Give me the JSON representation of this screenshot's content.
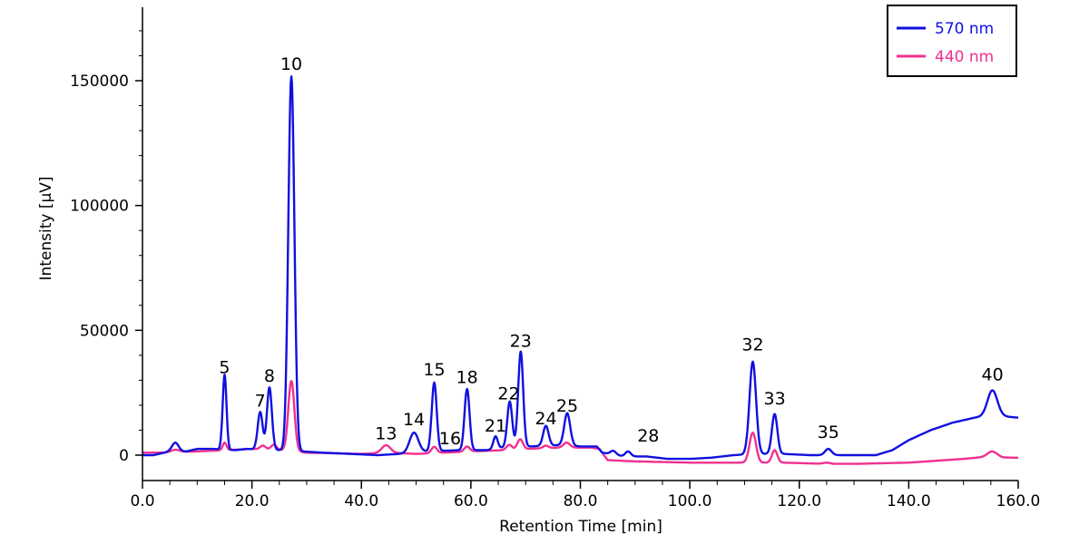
{
  "chart_data": {
    "type": "line",
    "title": "",
    "xlabel": "Retention Time [min]",
    "ylabel": "Intensity [µV]",
    "xlim": [
      0,
      160
    ],
    "ylim": [
      -10000,
      180000
    ],
    "x_ticks": [
      0,
      20,
      40,
      60,
      80,
      100,
      120,
      140,
      160
    ],
    "x_tick_labels": [
      "0.0",
      "20.0",
      "40.0",
      "60.0",
      "80.0",
      "100.0",
      "120.0",
      "140.0",
      "160.0"
    ],
    "y_ticks": [
      0,
      50000,
      100000,
      150000
    ],
    "y_tick_labels": [
      "0",
      "50000",
      "100000",
      "150000"
    ],
    "legend_position": "top-right",
    "series": [
      {
        "name": "570 nm",
        "color": "#1010e0",
        "baseline": [
          [
            0,
            0
          ],
          [
            2,
            0
          ],
          [
            5,
            1500
          ],
          [
            8,
            1500
          ],
          [
            10,
            2500
          ],
          [
            13,
            2500
          ],
          [
            17,
            2000
          ],
          [
            19,
            2500
          ],
          [
            25,
            2000
          ],
          [
            29,
            1500
          ],
          [
            33,
            1000
          ],
          [
            38,
            500
          ],
          [
            43,
            0
          ],
          [
            47,
            500
          ],
          [
            52,
            1500
          ],
          [
            58,
            2000
          ],
          [
            63,
            2000
          ],
          [
            67,
            3500
          ],
          [
            71,
            3500
          ],
          [
            76,
            4000
          ],
          [
            80,
            3500
          ],
          [
            83,
            3500
          ],
          [
            84,
            1000
          ],
          [
            88,
            -500
          ],
          [
            92,
            -500
          ],
          [
            96,
            -1500
          ],
          [
            100,
            -1500
          ],
          [
            104,
            -1000
          ],
          [
            108,
            0
          ],
          [
            112,
            500
          ],
          [
            117,
            500
          ],
          [
            122,
            0
          ],
          [
            128,
            0
          ],
          [
            134,
            0
          ],
          [
            137,
            2000
          ],
          [
            140,
            6000
          ],
          [
            144,
            10000
          ],
          [
            148,
            13000
          ],
          [
            152,
            15000
          ],
          [
            155,
            16000
          ],
          [
            160,
            15000
          ]
        ],
        "peaks": [
          [
            6,
            3500,
            0.6
          ],
          [
            15,
            30000,
            0.35
          ],
          [
            21.5,
            15000,
            0.45
          ],
          [
            23.2,
            25000,
            0.45
          ],
          [
            27.2,
            150000,
            0.55
          ],
          [
            49.6,
            8000,
            0.8
          ],
          [
            53.3,
            27500,
            0.45
          ],
          [
            59.3,
            24500,
            0.45
          ],
          [
            64.5,
            5000,
            0.4
          ],
          [
            67.1,
            18000,
            0.45
          ],
          [
            69.1,
            38000,
            0.45
          ],
          [
            73.7,
            8000,
            0.5
          ],
          [
            77.6,
            13000,
            0.55
          ],
          [
            86,
            1500,
            0.5
          ],
          [
            88.7,
            2000,
            0.5
          ],
          [
            111.5,
            37000,
            0.6
          ],
          [
            115.5,
            16000,
            0.5
          ],
          [
            125.3,
            2500,
            0.6
          ],
          [
            155.3,
            10000,
            0.9
          ]
        ]
      },
      {
        "name": "440 nm",
        "color": "#f0308f",
        "baseline": [
          [
            0,
            1000
          ],
          [
            4,
            1000
          ],
          [
            10,
            1500
          ],
          [
            20,
            2500
          ],
          [
            26,
            2000
          ],
          [
            30,
            1000
          ],
          [
            40,
            500
          ],
          [
            45,
            1000
          ],
          [
            50,
            500
          ],
          [
            55,
            1000
          ],
          [
            60,
            1500
          ],
          [
            66,
            2000
          ],
          [
            70,
            2500
          ],
          [
            76,
            3000
          ],
          [
            82,
            3000
          ],
          [
            83.5,
            2500
          ],
          [
            85,
            -2000
          ],
          [
            90,
            -2500
          ],
          [
            100,
            -3000
          ],
          [
            108,
            -3000
          ],
          [
            112,
            -3000
          ],
          [
            117,
            -3000
          ],
          [
            125,
            -3500
          ],
          [
            130,
            -3500
          ],
          [
            140,
            -3000
          ],
          [
            150,
            -1500
          ],
          [
            155,
            -500
          ],
          [
            157,
            -1000
          ],
          [
            160,
            -1000
          ]
        ],
        "peaks": [
          [
            6,
            1000,
            0.8
          ],
          [
            15,
            3000,
            0.35
          ],
          [
            22,
            1500,
            0.5
          ],
          [
            24,
            2000,
            0.5
          ],
          [
            27.2,
            28000,
            0.55
          ],
          [
            44.5,
            3000,
            0.8
          ],
          [
            53.3,
            2500,
            0.5
          ],
          [
            59.3,
            2000,
            0.5
          ],
          [
            67,
            2000,
            0.5
          ],
          [
            69,
            4000,
            0.5
          ],
          [
            73.7,
            1000,
            0.5
          ],
          [
            77.5,
            2000,
            0.6
          ],
          [
            111.5,
            12000,
            0.6
          ],
          [
            115.5,
            5000,
            0.5
          ],
          [
            125,
            500,
            0.6
          ],
          [
            155.3,
            2000,
            0.9
          ]
        ]
      }
    ],
    "annotations": [
      {
        "text": "5",
        "x": 15,
        "y": 30000
      },
      {
        "text": "7",
        "x": 21.5,
        "y": 16500
      },
      {
        "text": "8",
        "x": 23.2,
        "y": 26500
      },
      {
        "text": "10",
        "x": 27.2,
        "y": 151500
      },
      {
        "text": "13",
        "x": 44.5,
        "y": 3500
      },
      {
        "text": "14",
        "x": 49.6,
        "y": 9000
      },
      {
        "text": "15",
        "x": 53.3,
        "y": 29000
      },
      {
        "text": "16",
        "x": 56.2,
        "y": 1500
      },
      {
        "text": "18",
        "x": 59.3,
        "y": 26000
      },
      {
        "text": "21",
        "x": 64.5,
        "y": 6500
      },
      {
        "text": "22",
        "x": 66.9,
        "y": 19500
      },
      {
        "text": "23",
        "x": 69.1,
        "y": 40500
      },
      {
        "text": "24",
        "x": 73.7,
        "y": 9500
      },
      {
        "text": "25",
        "x": 77.6,
        "y": 14500
      },
      {
        "text": "28",
        "x": 92.4,
        "y": 2500
      },
      {
        "text": "32",
        "x": 111.5,
        "y": 39000
      },
      {
        "text": "33",
        "x": 115.5,
        "y": 17500
      },
      {
        "text": "35",
        "x": 125.3,
        "y": 4000
      },
      {
        "text": "40",
        "x": 155.3,
        "y": 27000
      }
    ]
  }
}
